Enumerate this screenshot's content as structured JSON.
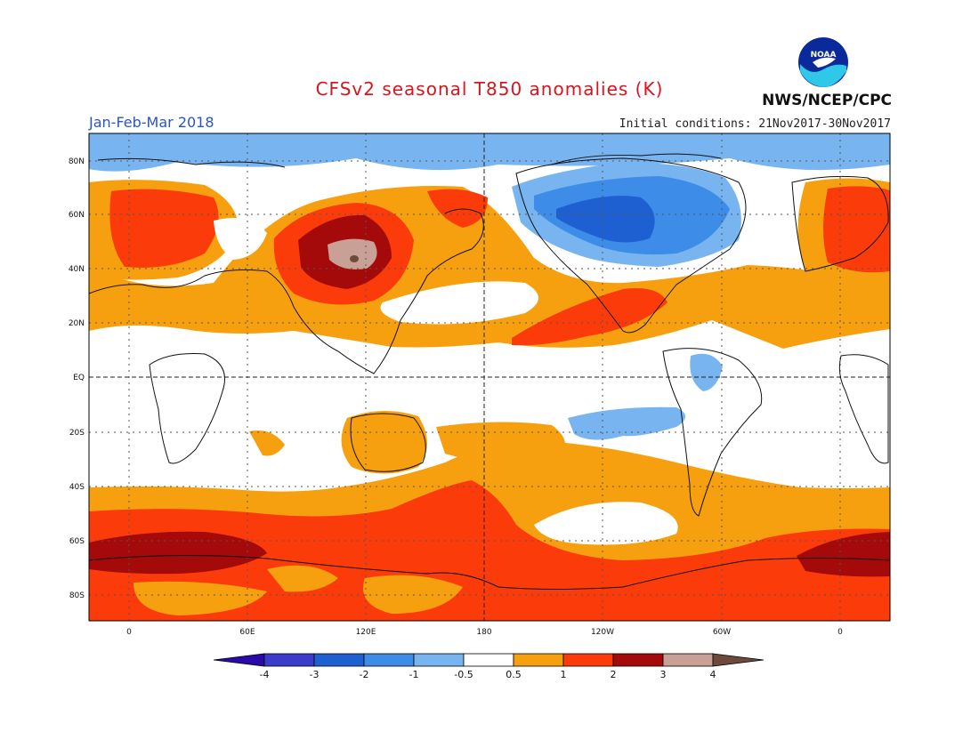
{
  "title": "CFSv2 seasonal T850 anomalies (K)",
  "period": "Jan-Feb-Mar 2018",
  "initial_conditions": "Initial conditions: 21Nov2017-30Nov2017",
  "agency": "NWS/NCEP/CPC",
  "logo_text": "NOAA",
  "lat_labels": [
    "80N",
    "60N",
    "40N",
    "20N",
    "EQ",
    "20S",
    "40S",
    "60S",
    "80S"
  ],
  "lon_labels": [
    "0",
    "60E",
    "120E",
    "180",
    "120W",
    "60W",
    "0"
  ],
  "colorbar": {
    "labels": [
      "-4",
      "-3",
      "-2",
      "-1",
      "-0.5",
      "0.5",
      "1",
      "2",
      "3",
      "4"
    ],
    "colors": [
      "#2a0aa8",
      "#3c3ccc",
      "#1e5fd2",
      "#3c8ce8",
      "#78b4f0",
      "#ffffff",
      "#f7a00f",
      "#fb3c0a",
      "#a50a0a",
      "#c8a096",
      "#6e4a3c"
    ]
  },
  "colors": {
    "cold_1": "#78b4f0",
    "cold_2": "#3c8ce8",
    "cold_3": "#1e5fd2",
    "warm_1": "#f7a00f",
    "warm_2": "#fb3c0a",
    "warm_3": "#a50a0a",
    "warm_4": "#c8a096",
    "warm_5": "#6e4a3c"
  }
}
